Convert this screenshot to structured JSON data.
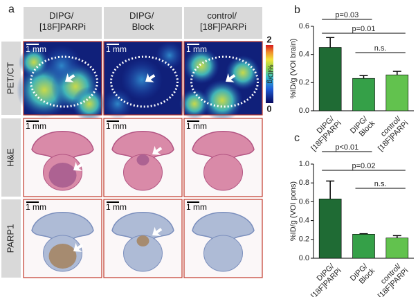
{
  "panel_a": {
    "label": "a",
    "columns": [
      "DIPG/ [18F]PARPi",
      "DIPG/ Block",
      "control/ [18F]PARPi"
    ],
    "rows": [
      "PET/CT",
      "H&E",
      "PARP1"
    ],
    "scale_bar": "1 mm",
    "colorbar": {
      "max": 2,
      "min": 0,
      "label": "%ID/g"
    }
  },
  "chart_data": [
    {
      "type": "bar",
      "label": "b",
      "y_label": "%ID/g (VOI brain)",
      "categories": [
        "DIPG/ [18F]PARPi",
        "DIPG/ Block",
        "control/ [18F]PARPi"
      ],
      "values": [
        0.45,
        0.23,
        0.255
      ],
      "errors": [
        0.07,
        0.02,
        0.025
      ],
      "colors": [
        "#1f6b34",
        "#35a048",
        "#62c24e"
      ],
      "ylim": [
        0,
        0.6
      ],
      "yticks": [
        {
          "value": 0,
          "label": "0.0"
        },
        0.2,
        0.4,
        0.6
      ],
      "annotations": [
        "p=0.03",
        "p=0.01",
        "n.s."
      ]
    },
    {
      "type": "bar",
      "label": "c",
      "y_label": "%ID/g (VOI pons)",
      "categories": [
        "DIPG/ [18F]PARPi",
        "DIPG/ Block",
        "control/ [18F]PARPi"
      ],
      "values": [
        0.63,
        0.255,
        0.215
      ],
      "errors": [
        0.19,
        0.005,
        0.025
      ],
      "colors": [
        "#1f6b34",
        "#35a048",
        "#62c24e"
      ],
      "ylim": [
        0,
        1.0
      ],
      "yticks": [
        {
          "value": 0,
          "label": "0.0"
        },
        0.2,
        0.4,
        0.6,
        0.8,
        {
          "value": 1,
          "label": "1.0"
        }
      ],
      "annotations": [
        "p<0.01",
        "p=0.02",
        "n.s."
      ]
    }
  ]
}
